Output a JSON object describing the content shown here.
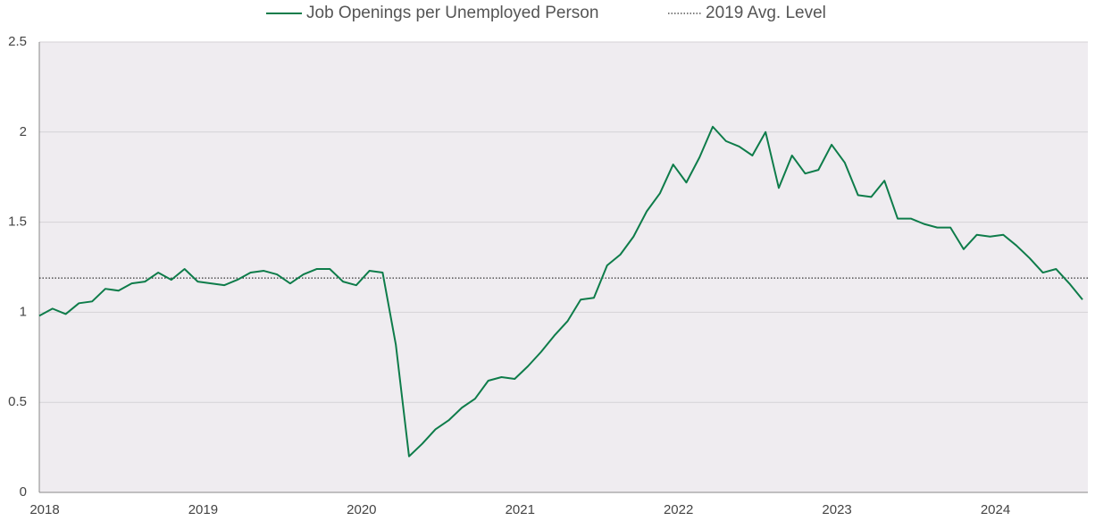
{
  "chart_data": {
    "type": "line",
    "categories": [
      "2018",
      null,
      null,
      null,
      null,
      null,
      null,
      null,
      null,
      null,
      null,
      null,
      "2019",
      null,
      null,
      null,
      null,
      null,
      null,
      null,
      null,
      null,
      null,
      null,
      "2020",
      null,
      null,
      null,
      null,
      null,
      null,
      null,
      null,
      null,
      null,
      null,
      "2021",
      null,
      null,
      null,
      null,
      null,
      null,
      null,
      null,
      null,
      null,
      null,
      "2022",
      null,
      null,
      null,
      null,
      null,
      null,
      null,
      null,
      null,
      null,
      null,
      "2023",
      null,
      null,
      null,
      null,
      null,
      null,
      null,
      null,
      null,
      null,
      null,
      "2024",
      null,
      null,
      null,
      null,
      null,
      null,
      null
    ],
    "series": [
      {
        "name": "Job Openings per Unemployed Person",
        "color": "#0e7c4a",
        "values": [
          0.98,
          1.02,
          0.99,
          1.05,
          1.06,
          1.13,
          1.12,
          1.16,
          1.17,
          1.22,
          1.18,
          1.24,
          1.17,
          1.16,
          1.15,
          1.18,
          1.22,
          1.23,
          1.21,
          1.16,
          1.21,
          1.24,
          1.24,
          1.17,
          1.15,
          1.23,
          1.22,
          0.82,
          0.2,
          0.27,
          0.35,
          0.4,
          0.47,
          0.52,
          0.62,
          0.64,
          0.63,
          0.7,
          0.78,
          0.87,
          0.95,
          1.07,
          1.08,
          1.26,
          1.32,
          1.42,
          1.56,
          1.66,
          1.82,
          1.72,
          1.86,
          2.03,
          1.95,
          1.92,
          1.87,
          2.0,
          1.69,
          1.87,
          1.77,
          1.79,
          1.93,
          1.83,
          1.65,
          1.64,
          1.73,
          1.52,
          1.52,
          1.49,
          1.47,
          1.47,
          1.35,
          1.43,
          1.42,
          1.43,
          1.37,
          1.3,
          1.22,
          1.24,
          1.16,
          1.07
        ]
      }
    ],
    "reference_line": {
      "name": "2019 Avg. Level",
      "value": 1.19,
      "color": "#333333"
    },
    "ylim": [
      0,
      2.5
    ],
    "yticks": [
      0,
      0.5,
      1,
      1.5,
      2,
      2.5
    ],
    "grid": true,
    "legend": "top"
  }
}
